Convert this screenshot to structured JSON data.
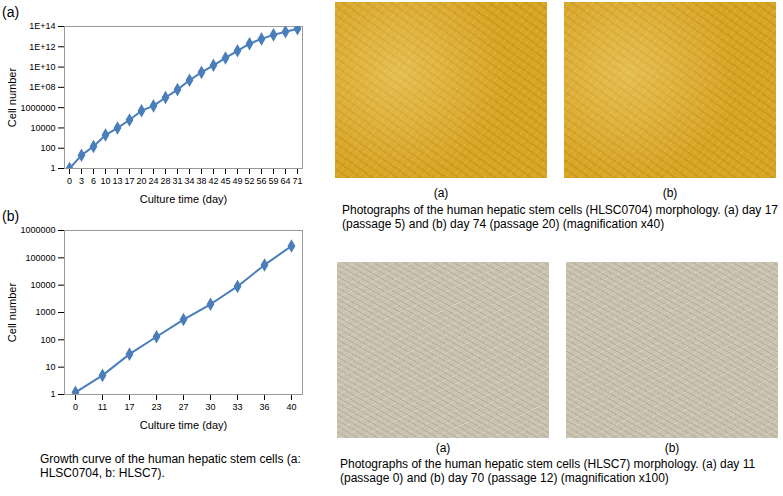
{
  "chart_data": [
    {
      "type": "line",
      "title": "(a)",
      "x_label": "Culture time (day)",
      "y_label": "Cell number",
      "categories": [
        0,
        3,
        6,
        10,
        13,
        17,
        20,
        24,
        28,
        31,
        34,
        38,
        42,
        45,
        49,
        52,
        56,
        59,
        64,
        71
      ],
      "values": [
        1,
        20,
        150,
        2000,
        10000,
        60000,
        500000,
        1500000,
        10000000,
        60000000,
        500000000,
        3000000000,
        15000000000,
        80000000000,
        400000000000,
        2000000000000,
        6000000000000,
        15000000000000,
        30000000000000,
        60000000000000
      ],
      "color": "#4a7ebb",
      "marker": "diamond",
      "log": "y",
      "grid": false,
      "ylim": [
        1,
        100000000000000.0
      ],
      "yticks": [
        1,
        100,
        10000,
        1000000,
        {
          "value": 100000000.0,
          "label": "1E+08"
        },
        {
          "value": 10000000000.0,
          "label": "1E+10"
        },
        {
          "value": 1000000000000.0,
          "label": "1E+12"
        },
        {
          "value": 100000000000000.0,
          "label": "1E+14"
        }
      ]
    },
    {
      "type": "line",
      "title": "(b)",
      "x_label": "Culture time (day)",
      "y_label": "Cell number",
      "categories": [
        0,
        11,
        17,
        23,
        27,
        30,
        33,
        36,
        40
      ],
      "values": [
        1.2,
        5,
        30,
        130,
        550,
        2000,
        9000,
        55000,
        270000
      ],
      "color": "#4a7ebb",
      "marker": "diamond",
      "log": "y",
      "grid": false,
      "ylim": [
        1,
        1000000
      ],
      "yticks": [
        1,
        10,
        100,
        1000,
        10000,
        100000,
        1000000
      ]
    }
  ],
  "caption": "Growth curve of the human hepatic stem cells (a: HLSC0704, b: HLSC7).",
  "photos": [
    {
      "panels": [
        "(a)",
        "(b)"
      ],
      "caption": "Photographs of the human hepatic stem cells (HLSC0704) morphology. (a) day 17 (passage 5) and (b) day 74 (passage 20) (magnification x40)"
    },
    {
      "panels": [
        "(a)",
        "(b)"
      ],
      "caption": "Photographs of the human hepatic stem cells (HLSC7) morphology. (a) day 11 (passage 0) and (b) day 70 (passage 12) (magnification x100)"
    }
  ]
}
